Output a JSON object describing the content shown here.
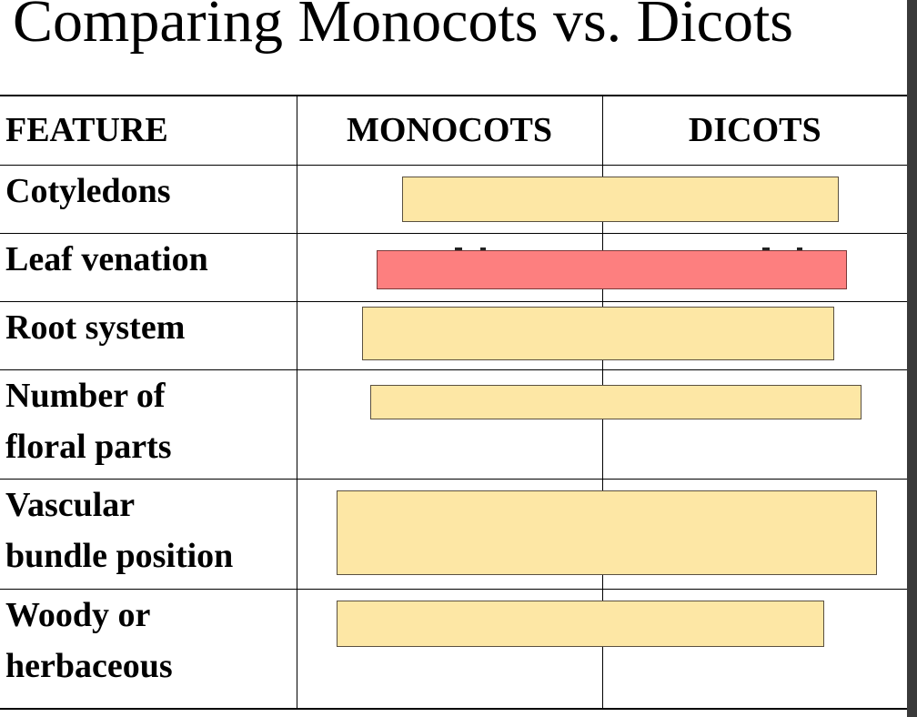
{
  "title": "Comparing Monocots vs. Dicots",
  "table": {
    "headers": {
      "feature": "FEATURE",
      "monocots": "MONOCOTS",
      "dicots": "DICOTS"
    },
    "rows": [
      {
        "feature_line1": "Cotyledons",
        "feature_line2": ""
      },
      {
        "feature_line1": "Leaf venation",
        "feature_line2": ""
      },
      {
        "feature_line1": "Root system",
        "feature_line2": ""
      },
      {
        "feature_line1": "Number of",
        "feature_line2": "floral parts"
      },
      {
        "feature_line1": "Vascular",
        "feature_line2": "bundle position"
      },
      {
        "feature_line1": "Woody or",
        "feature_line2": "herbaceous"
      }
    ]
  },
  "colors": {
    "cover_yellow": "#fde7a5",
    "cover_red": "#fd7f7f"
  }
}
